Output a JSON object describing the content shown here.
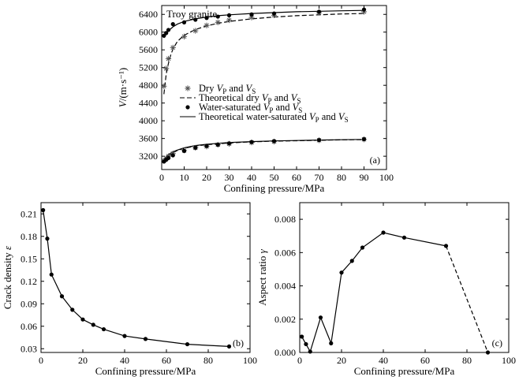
{
  "chart_data": [
    {
      "panel": "(a)",
      "type": "scatter",
      "title": "Troy granite",
      "xlabel": "Confining pressure/MPa",
      "ylabel": "V/(m·s⁻¹)",
      "xlim": [
        0,
        100
      ],
      "ylim": [
        2900,
        6600
      ],
      "xticks": [
        0,
        10,
        20,
        30,
        40,
        50,
        60,
        70,
        80,
        90,
        100
      ],
      "yticks": [
        3200,
        3600,
        4000,
        4400,
        4800,
        5200,
        5600,
        6000,
        6400
      ],
      "legend_position": "center-left",
      "legend": [
        "Dry V_P and V_S",
        "Theoretical dry V_P and V_S",
        "Water-saturated V_P and V_S",
        "Theoretical water-saturated V_P and V_S"
      ],
      "series": [
        {
          "name": "Dry V_P",
          "marker": "asterisk",
          "x": [
            1,
            2,
            3,
            5,
            10,
            15,
            20,
            25,
            30,
            40,
            50,
            70,
            90
          ],
          "y": [
            4780,
            5180,
            5400,
            5650,
            5900,
            6030,
            6150,
            6220,
            6270,
            6330,
            6380,
            6440,
            6460
          ]
        },
        {
          "name": "Dry V_S",
          "marker": "asterisk",
          "x": [
            1,
            2,
            3,
            5,
            10,
            15,
            20,
            25,
            30,
            40,
            50,
            70,
            90
          ],
          "y": [
            3100,
            3150,
            3200,
            3260,
            3330,
            3390,
            3420,
            3460,
            3480,
            3510,
            3530,
            3560,
            3580
          ]
        },
        {
          "name": "Theoretical dry V_P",
          "style": "dashed",
          "x": [
            1,
            2,
            3,
            4,
            5,
            7,
            10,
            15,
            20,
            25,
            30,
            40,
            50,
            60,
            70,
            80,
            90
          ],
          "y": [
            4600,
            5050,
            5300,
            5480,
            5620,
            5790,
            5930,
            6060,
            6140,
            6200,
            6240,
            6300,
            6340,
            6370,
            6390,
            6410,
            6420
          ]
        },
        {
          "name": "Theoretical dry V_S",
          "style": "dashed",
          "x": [
            1,
            2,
            3,
            5,
            7,
            10,
            15,
            20,
            30,
            40,
            50,
            60,
            70,
            80,
            90
          ],
          "y": [
            3050,
            3140,
            3200,
            3280,
            3330,
            3380,
            3430,
            3460,
            3500,
            3525,
            3540,
            3550,
            3560,
            3570,
            3575
          ]
        },
        {
          "name": "Water-saturated V_P",
          "marker": "dot",
          "x": [
            1,
            2,
            3,
            5,
            10,
            15,
            20,
            25,
            30,
            40,
            50,
            70,
            90
          ],
          "y": [
            5920,
            5980,
            6050,
            6180,
            6220,
            6280,
            6320,
            6350,
            6380,
            6400,
            6420,
            6460,
            6510
          ]
        },
        {
          "name": "Water-saturated V_S",
          "marker": "dot",
          "x": [
            1,
            2,
            3,
            5,
            10,
            15,
            20,
            25,
            30,
            40,
            50,
            70,
            90
          ],
          "y": [
            3080,
            3120,
            3160,
            3220,
            3320,
            3390,
            3430,
            3460,
            3490,
            3520,
            3540,
            3565,
            3585
          ]
        },
        {
          "name": "Theoretical water-saturated V_P",
          "style": "solid",
          "x": [
            1,
            2,
            3,
            5,
            7,
            10,
            15,
            20,
            25,
            30,
            40,
            50,
            60,
            70,
            80,
            90
          ],
          "y": [
            5870,
            5960,
            6030,
            6120,
            6180,
            6240,
            6300,
            6340,
            6370,
            6390,
            6420,
            6440,
            6460,
            6470,
            6480,
            6490
          ]
        },
        {
          "name": "Theoretical water-saturated V_S",
          "style": "solid",
          "x": [
            1,
            2,
            3,
            5,
            7,
            10,
            15,
            20,
            25,
            30,
            40,
            50,
            60,
            70,
            80,
            90
          ],
          "y": [
            3130,
            3190,
            3240,
            3300,
            3340,
            3390,
            3440,
            3470,
            3490,
            3510,
            3530,
            3545,
            3555,
            3565,
            3572,
            3580
          ]
        }
      ]
    },
    {
      "panel": "(b)",
      "type": "line",
      "xlabel": "Confining pressure/MPa",
      "ylabel": "Crack density ε",
      "xlim": [
        0,
        100
      ],
      "ylim": [
        0.025,
        0.225
      ],
      "xticks": [
        0,
        20,
        40,
        60,
        80,
        100
      ],
      "yticks": [
        0.03,
        0.06,
        0.09,
        0.12,
        0.15,
        0.18,
        0.21
      ],
      "x": [
        1,
        3,
        5,
        10,
        15,
        20,
        25,
        30,
        40,
        50,
        70,
        90
      ],
      "y": [
        0.215,
        0.177,
        0.129,
        0.1,
        0.082,
        0.069,
        0.062,
        0.056,
        0.047,
        0.043,
        0.036,
        0.033
      ]
    },
    {
      "panel": "(c)",
      "type": "line",
      "xlabel": "Confining pressure/MPa",
      "ylabel": "Aspect ratio γ",
      "xlim": [
        0,
        100
      ],
      "ylim": [
        0,
        0.009
      ],
      "xticks": [
        0,
        20,
        40,
        60,
        80,
        100
      ],
      "yticks": [
        0.0,
        0.002,
        0.004,
        0.006,
        0.008
      ],
      "ytick_labels": [
        "0.000",
        "0.002",
        "0.004",
        "0.006",
        "0.008"
      ],
      "x": [
        1,
        3,
        5,
        10,
        15,
        20,
        25,
        30,
        40,
        50,
        70,
        90
      ],
      "y": [
        0.00095,
        0.0005,
        5e-05,
        0.0021,
        0.00055,
        0.0048,
        0.0055,
        0.0063,
        0.0072,
        0.0069,
        0.0064,
        0.0
      ],
      "dashed_from_index": 10
    }
  ]
}
